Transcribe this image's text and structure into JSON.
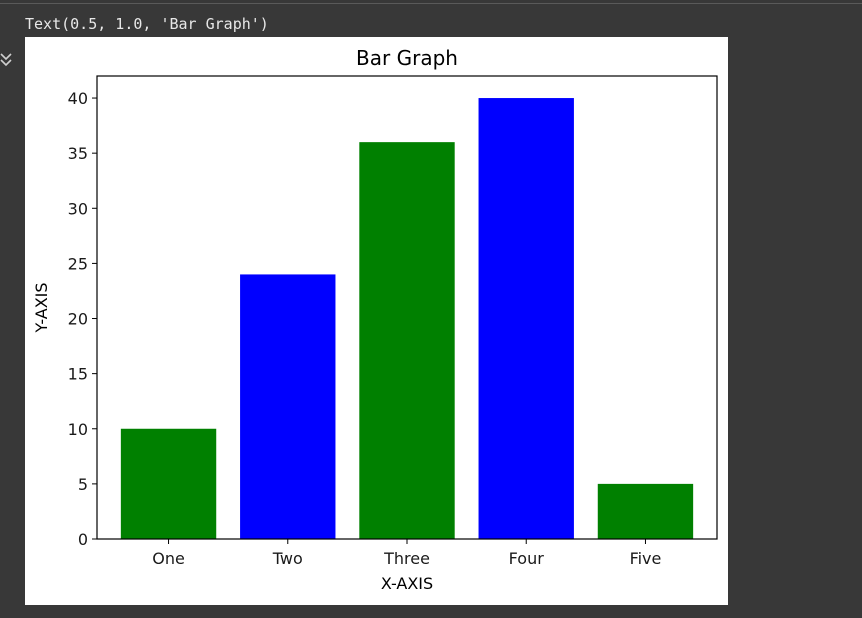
{
  "cell_output": {
    "text": "Text(0.5, 1.0, 'Bar Graph')"
  },
  "icons": {
    "output_toggle": "collapse-output-icon"
  },
  "chart_data": {
    "type": "bar",
    "title": "Bar Graph",
    "xlabel": "X-AXIS",
    "ylabel": "Y-AXIS",
    "categories": [
      "One",
      "Two",
      "Three",
      "Four",
      "Five"
    ],
    "values": [
      10,
      24,
      36,
      40,
      5
    ],
    "bar_colors": [
      "#008000",
      "#0000ff",
      "#008000",
      "#0000ff",
      "#008000"
    ],
    "ylim": [
      0,
      42
    ],
    "yticks": [
      0,
      5,
      10,
      15,
      20,
      25,
      30,
      35,
      40
    ],
    "ytick_labels": [
      "0",
      "5",
      "10",
      "15",
      "20",
      "25",
      "30",
      "35",
      "40"
    ],
    "grid": false,
    "legend": false
  }
}
